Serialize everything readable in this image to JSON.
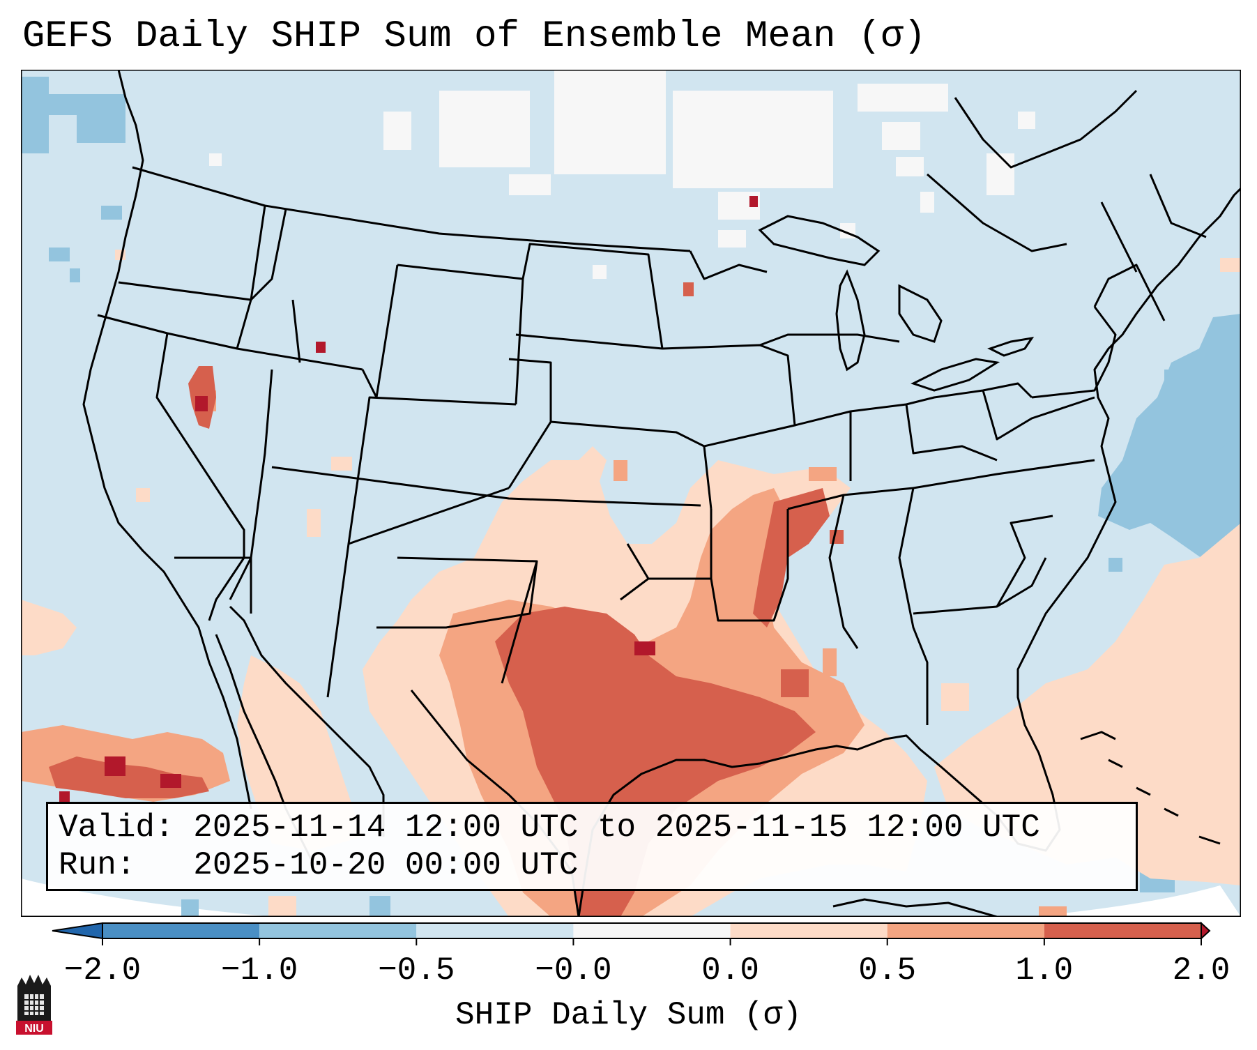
{
  "title": "GEFS Daily SHIP Sum of Ensemble Mean (σ)",
  "legend": {
    "valid_label": "Valid:",
    "valid_value": "2025-11-14 12:00 UTC to 2025-11-15 12:00 UTC",
    "run_label": "Run:",
    "run_value": "2025-10-20 00:00 UTC"
  },
  "colorbar": {
    "label": "SHIP Daily Sum (σ)",
    "ticks": [
      "−2.0",
      "−1.0",
      "−0.5",
      "−0.0",
      "0.0",
      "0.5",
      "1.0",
      "2.0"
    ],
    "colors": [
      "#4a8fc4",
      "#93c4de",
      "#d1e5f0",
      "#f7f7f7",
      "#fddbc7",
      "#f4a582",
      "#d6604d"
    ],
    "extend_low_color": "#2166ac",
    "extend_high_color": "#b2182b"
  },
  "map": {
    "projection": "Lambert Conformal Conic",
    "region": "Continental United States",
    "background_color": "#d1e5f0"
  },
  "logo_text": "NIU",
  "icons": {
    "logo": "niu-castle-logo-icon"
  }
}
